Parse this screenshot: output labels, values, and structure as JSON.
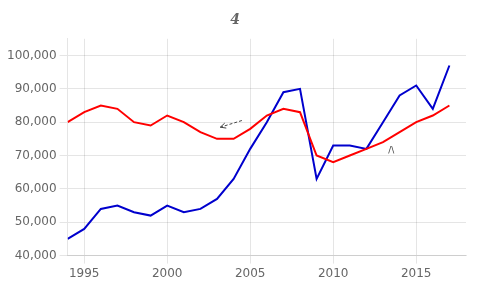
{
  "chart_data": {
    "type": "line",
    "title": "4",
    "x": [
      1994,
      1995,
      1996,
      1997,
      1998,
      1999,
      2000,
      2001,
      2002,
      2003,
      2004,
      2005,
      2006,
      2007,
      2008,
      2009,
      2010,
      2011,
      2012,
      2013,
      2014,
      2015,
      2016,
      2017
    ],
    "series": [
      {
        "color": "#ff0000",
        "values": [
          80000,
          83000,
          85000,
          84000,
          80000,
          79000,
          82000,
          80000,
          77000,
          75000,
          75000,
          78000,
          82000,
          84000,
          83000,
          70000,
          68000,
          70000,
          72000,
          74000,
          77000,
          80000,
          82000,
          85000
        ]
      },
      {
        "color": "#0000cd",
        "values": [
          45000,
          48000,
          54000,
          55000,
          53000,
          52000,
          55000,
          53000,
          54000,
          57000,
          63000,
          72000,
          80000,
          89000,
          90000,
          63000,
          73000,
          73000,
          72000,
          80000,
          88000,
          91000,
          84000,
          97000
        ]
      }
    ],
    "xlim": [
      1994,
      2018
    ],
    "xticks": [
      1995,
      2000,
      2005,
      2010,
      2015
    ],
    "ylim": [
      40000,
      105000
    ],
    "yticks": [
      {
        "value": 40000,
        "label": "40,000"
      },
      {
        "value": 50000,
        "label": "50,000"
      },
      {
        "value": 60000,
        "label": "60,000"
      },
      {
        "value": 70000,
        "label": "70,000"
      },
      {
        "value": 80000,
        "label": "80,000"
      },
      {
        "value": 90000,
        "label": "90,000"
      },
      {
        "value": 100000,
        "label": "100,000"
      }
    ],
    "grid": true,
    "annotations": [
      {
        "x": 2004.5,
        "y": 80500,
        "x_end": 2003.2,
        "y_end": 78500
      },
      {
        "text": "/\\",
        "x": 2013.5,
        "y": 71500
      }
    ]
  }
}
